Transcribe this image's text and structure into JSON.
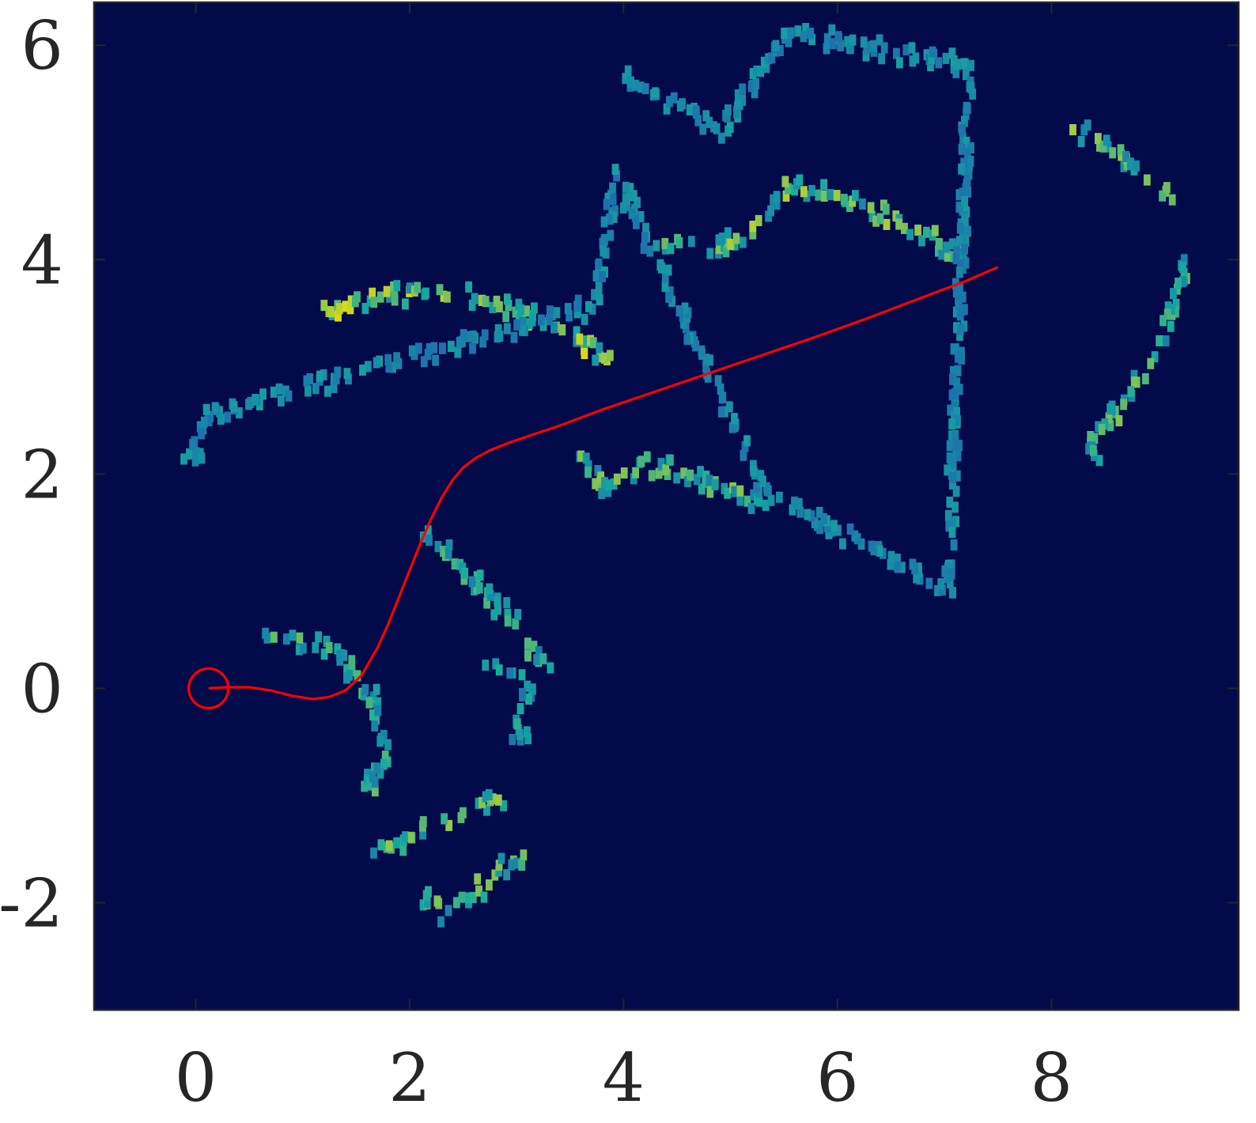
{
  "chart_data": {
    "type": "heatmap",
    "title": "",
    "xlabel": "",
    "ylabel": "",
    "xlim": [
      -0.95,
      9.75
    ],
    "ylim": [
      -3.0,
      6.4
    ],
    "x_ticks": [
      0,
      2,
      4,
      6,
      8
    ],
    "y_ticks": [
      -2,
      0,
      2,
      4,
      6
    ],
    "x_tick_labels": [
      "0",
      "2",
      "4",
      "6",
      "8"
    ],
    "y_tick_labels": [
      "-2",
      "0",
      "2",
      "4",
      "6"
    ],
    "grid": false,
    "legend": "none",
    "colormap": "parula",
    "colors": {
      "background": "#020a4a",
      "low": "#1f5fb0",
      "mid": "#14a9a0",
      "high": "#d9d81a",
      "path": "#ff0000",
      "axis": "#262626"
    },
    "start_marker": {
      "x": 0.12,
      "y": 0.0
    },
    "path": {
      "x": [
        0.12,
        0.3,
        0.5,
        0.7,
        0.9,
        1.1,
        1.25,
        1.4,
        1.55,
        1.7,
        1.8,
        1.9,
        2.0,
        2.1,
        2.2,
        2.3,
        2.4,
        2.5,
        2.62,
        2.75,
        2.9,
        3.1,
        3.4,
        3.8,
        4.3,
        4.8,
        5.3,
        5.8,
        6.3,
        6.8,
        7.2,
        7.5
      ],
      "y": [
        0.0,
        0.01,
        0.01,
        -0.02,
        -0.07,
        -0.1,
        -0.08,
        -0.02,
        0.12,
        0.38,
        0.6,
        0.85,
        1.1,
        1.35,
        1.58,
        1.78,
        1.94,
        2.06,
        2.15,
        2.22,
        2.28,
        2.35,
        2.45,
        2.6,
        2.77,
        2.94,
        3.11,
        3.28,
        3.46,
        3.65,
        3.8,
        3.93
      ]
    },
    "occupancy_clusters": [
      {
        "x": [
          1.2,
          1.5,
          1.8,
          2.0,
          2.2,
          2.4,
          2.6,
          2.85,
          3.1,
          3.4,
          3.6,
          3.75
        ],
        "y": [
          3.6,
          3.68,
          3.74,
          3.78,
          3.78,
          3.76,
          3.72,
          3.65,
          3.55,
          3.42,
          3.3,
          3.2
        ],
        "intensity": 0.85
      },
      {
        "x": [
          0.55,
          0.8,
          1.1,
          1.3,
          1.55
        ],
        "y": [
          0.6,
          0.55,
          0.5,
          0.4,
          0.05
        ],
        "intensity": 0.6
      },
      {
        "x": [
          2.1,
          2.3,
          2.45,
          2.7,
          2.9,
          3.0,
          3.15
        ],
        "y": [
          1.5,
          1.35,
          1.2,
          0.95,
          0.75,
          0.55,
          0.4
        ],
        "intensity": 0.55
      },
      {
        "x": [
          2.7,
          2.95,
          3.1,
          3.05,
          2.95
        ],
        "y": [
          0.3,
          0.2,
          0.1,
          0.0,
          -0.3
        ],
        "intensity": 0.45
      },
      {
        "x": [
          1.6,
          1.7,
          1.75,
          1.65,
          1.55
        ],
        "y": [
          0.0,
          -0.3,
          -0.5,
          -0.7,
          -0.8
        ],
        "intensity": 0.6
      },
      {
        "x": [
          1.6,
          1.9,
          2.1,
          2.3,
          2.55,
          2.7
        ],
        "y": [
          -1.45,
          -1.35,
          -1.2,
          -1.1,
          -1.05,
          -0.95
        ],
        "intensity": 0.7
      },
      {
        "x": [
          2.1,
          2.3,
          2.5,
          2.95
        ],
        "y": [
          -1.85,
          -2.0,
          -1.9,
          -1.5
        ],
        "intensity": 0.65
      },
      {
        "x": [
          3.6,
          3.8,
          4.1,
          4.5,
          4.9,
          5.2
        ],
        "y": [
          2.25,
          1.9,
          2.2,
          2.1,
          1.95,
          1.85
        ],
        "intensity": 0.65
      },
      {
        "x": [
          4.3,
          4.7,
          5.1,
          5.5,
          5.9,
          6.3,
          6.7,
          7.0
        ],
        "y": [
          4.28,
          4.15,
          4.3,
          4.75,
          4.7,
          4.55,
          4.35,
          4.2
        ],
        "intensity": 0.75
      },
      {
        "x": [
          8.2,
          8.4,
          8.6,
          8.8,
          9.0
        ],
        "y": [
          5.3,
          5.2,
          5.05,
          4.9,
          4.75
        ],
        "intensity": 0.7
      },
      {
        "x": [
          9.2,
          9.1,
          8.95,
          8.8,
          8.6,
          8.45,
          8.3
        ],
        "y": [
          4.0,
          3.6,
          3.3,
          3.0,
          2.7,
          2.5,
          2.3
        ],
        "intensity": 0.65
      },
      {
        "x": [
          4.0,
          4.9,
          5.5,
          7.2,
          7.0,
          5.3,
          3.9,
          3.7,
          0.1,
          -0.1
        ],
        "y": [
          5.75,
          5.3,
          6.2,
          5.9,
          1.0,
          1.9,
          4.9,
          3.65,
          2.65,
          2.2
        ],
        "intensity": 0.35
      }
    ]
  }
}
